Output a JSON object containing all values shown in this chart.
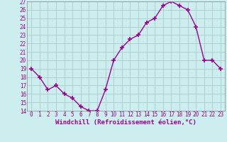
{
  "x": [
    0,
    1,
    2,
    3,
    4,
    5,
    6,
    7,
    8,
    9,
    10,
    11,
    12,
    13,
    14,
    15,
    16,
    17,
    18,
    19,
    20,
    21,
    22,
    23
  ],
  "y": [
    19,
    18,
    16.5,
    17,
    16,
    15.5,
    14.5,
    14,
    14,
    16.5,
    20,
    21.5,
    22.5,
    23,
    24.5,
    25,
    26.5,
    27,
    26.5,
    26,
    24,
    20,
    20,
    19
  ],
  "line_color": "#990099",
  "marker_color": "#990099",
  "bg_color": "#cceeee",
  "grid_color": "#aacccc",
  "xlabel": "Windchill (Refroidissement éolien,°C)",
  "xlabel_color": "#990099",
  "ylim": [
    14,
    27
  ],
  "yticks": [
    14,
    15,
    16,
    17,
    18,
    19,
    20,
    21,
    22,
    23,
    24,
    25,
    26,
    27
  ],
  "xtick_labels": [
    "0",
    "1",
    "2",
    "3",
    "4",
    "5",
    "6",
    "7",
    "8",
    "9",
    "10",
    "11",
    "12",
    "13",
    "14",
    "15",
    "16",
    "17",
    "18",
    "19",
    "20",
    "21",
    "22",
    "23"
  ],
  "tick_label_color": "#990099",
  "tick_label_fontsize": 5.5,
  "xlabel_fontsize": 6.5,
  "line_width": 1.0,
  "marker_size": 4
}
